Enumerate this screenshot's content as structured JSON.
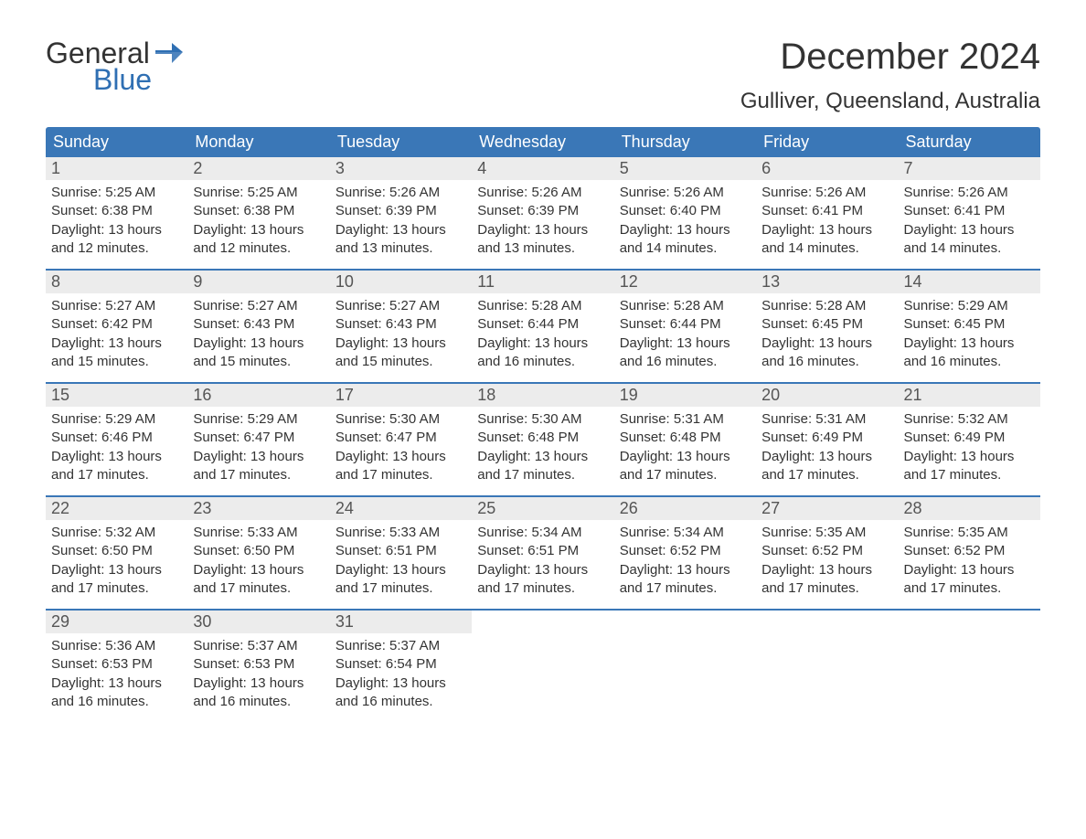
{
  "logo": {
    "general": "General",
    "blue": "Blue"
  },
  "title": "December 2024",
  "location": "Gulliver, Queensland, Australia",
  "colors": {
    "header_bg": "#3a77b7",
    "header_text": "#ffffff",
    "daynum_bg": "#ececec",
    "border": "#3a77b7",
    "body_text": "#333333",
    "logo_blue": "#2f6fb3"
  },
  "weekdays": [
    "Sunday",
    "Monday",
    "Tuesday",
    "Wednesday",
    "Thursday",
    "Friday",
    "Saturday"
  ],
  "weeks": [
    [
      {
        "n": "1",
        "sr": "Sunrise: 5:25 AM",
        "ss": "Sunset: 6:38 PM",
        "d1": "Daylight: 13 hours",
        "d2": "and 12 minutes."
      },
      {
        "n": "2",
        "sr": "Sunrise: 5:25 AM",
        "ss": "Sunset: 6:38 PM",
        "d1": "Daylight: 13 hours",
        "d2": "and 12 minutes."
      },
      {
        "n": "3",
        "sr": "Sunrise: 5:26 AM",
        "ss": "Sunset: 6:39 PM",
        "d1": "Daylight: 13 hours",
        "d2": "and 13 minutes."
      },
      {
        "n": "4",
        "sr": "Sunrise: 5:26 AM",
        "ss": "Sunset: 6:39 PM",
        "d1": "Daylight: 13 hours",
        "d2": "and 13 minutes."
      },
      {
        "n": "5",
        "sr": "Sunrise: 5:26 AM",
        "ss": "Sunset: 6:40 PM",
        "d1": "Daylight: 13 hours",
        "d2": "and 14 minutes."
      },
      {
        "n": "6",
        "sr": "Sunrise: 5:26 AM",
        "ss": "Sunset: 6:41 PM",
        "d1": "Daylight: 13 hours",
        "d2": "and 14 minutes."
      },
      {
        "n": "7",
        "sr": "Sunrise: 5:26 AM",
        "ss": "Sunset: 6:41 PM",
        "d1": "Daylight: 13 hours",
        "d2": "and 14 minutes."
      }
    ],
    [
      {
        "n": "8",
        "sr": "Sunrise: 5:27 AM",
        "ss": "Sunset: 6:42 PM",
        "d1": "Daylight: 13 hours",
        "d2": "and 15 minutes."
      },
      {
        "n": "9",
        "sr": "Sunrise: 5:27 AM",
        "ss": "Sunset: 6:43 PM",
        "d1": "Daylight: 13 hours",
        "d2": "and 15 minutes."
      },
      {
        "n": "10",
        "sr": "Sunrise: 5:27 AM",
        "ss": "Sunset: 6:43 PM",
        "d1": "Daylight: 13 hours",
        "d2": "and 15 minutes."
      },
      {
        "n": "11",
        "sr": "Sunrise: 5:28 AM",
        "ss": "Sunset: 6:44 PM",
        "d1": "Daylight: 13 hours",
        "d2": "and 16 minutes."
      },
      {
        "n": "12",
        "sr": "Sunrise: 5:28 AM",
        "ss": "Sunset: 6:44 PM",
        "d1": "Daylight: 13 hours",
        "d2": "and 16 minutes."
      },
      {
        "n": "13",
        "sr": "Sunrise: 5:28 AM",
        "ss": "Sunset: 6:45 PM",
        "d1": "Daylight: 13 hours",
        "d2": "and 16 minutes."
      },
      {
        "n": "14",
        "sr": "Sunrise: 5:29 AM",
        "ss": "Sunset: 6:45 PM",
        "d1": "Daylight: 13 hours",
        "d2": "and 16 minutes."
      }
    ],
    [
      {
        "n": "15",
        "sr": "Sunrise: 5:29 AM",
        "ss": "Sunset: 6:46 PM",
        "d1": "Daylight: 13 hours",
        "d2": "and 17 minutes."
      },
      {
        "n": "16",
        "sr": "Sunrise: 5:29 AM",
        "ss": "Sunset: 6:47 PM",
        "d1": "Daylight: 13 hours",
        "d2": "and 17 minutes."
      },
      {
        "n": "17",
        "sr": "Sunrise: 5:30 AM",
        "ss": "Sunset: 6:47 PM",
        "d1": "Daylight: 13 hours",
        "d2": "and 17 minutes."
      },
      {
        "n": "18",
        "sr": "Sunrise: 5:30 AM",
        "ss": "Sunset: 6:48 PM",
        "d1": "Daylight: 13 hours",
        "d2": "and 17 minutes."
      },
      {
        "n": "19",
        "sr": "Sunrise: 5:31 AM",
        "ss": "Sunset: 6:48 PM",
        "d1": "Daylight: 13 hours",
        "d2": "and 17 minutes."
      },
      {
        "n": "20",
        "sr": "Sunrise: 5:31 AM",
        "ss": "Sunset: 6:49 PM",
        "d1": "Daylight: 13 hours",
        "d2": "and 17 minutes."
      },
      {
        "n": "21",
        "sr": "Sunrise: 5:32 AM",
        "ss": "Sunset: 6:49 PM",
        "d1": "Daylight: 13 hours",
        "d2": "and 17 minutes."
      }
    ],
    [
      {
        "n": "22",
        "sr": "Sunrise: 5:32 AM",
        "ss": "Sunset: 6:50 PM",
        "d1": "Daylight: 13 hours",
        "d2": "and 17 minutes."
      },
      {
        "n": "23",
        "sr": "Sunrise: 5:33 AM",
        "ss": "Sunset: 6:50 PM",
        "d1": "Daylight: 13 hours",
        "d2": "and 17 minutes."
      },
      {
        "n": "24",
        "sr": "Sunrise: 5:33 AM",
        "ss": "Sunset: 6:51 PM",
        "d1": "Daylight: 13 hours",
        "d2": "and 17 minutes."
      },
      {
        "n": "25",
        "sr": "Sunrise: 5:34 AM",
        "ss": "Sunset: 6:51 PM",
        "d1": "Daylight: 13 hours",
        "d2": "and 17 minutes."
      },
      {
        "n": "26",
        "sr": "Sunrise: 5:34 AM",
        "ss": "Sunset: 6:52 PM",
        "d1": "Daylight: 13 hours",
        "d2": "and 17 minutes."
      },
      {
        "n": "27",
        "sr": "Sunrise: 5:35 AM",
        "ss": "Sunset: 6:52 PM",
        "d1": "Daylight: 13 hours",
        "d2": "and 17 minutes."
      },
      {
        "n": "28",
        "sr": "Sunrise: 5:35 AM",
        "ss": "Sunset: 6:52 PM",
        "d1": "Daylight: 13 hours",
        "d2": "and 17 minutes."
      }
    ],
    [
      {
        "n": "29",
        "sr": "Sunrise: 5:36 AM",
        "ss": "Sunset: 6:53 PM",
        "d1": "Daylight: 13 hours",
        "d2": "and 16 minutes."
      },
      {
        "n": "30",
        "sr": "Sunrise: 5:37 AM",
        "ss": "Sunset: 6:53 PM",
        "d1": "Daylight: 13 hours",
        "d2": "and 16 minutes."
      },
      {
        "n": "31",
        "sr": "Sunrise: 5:37 AM",
        "ss": "Sunset: 6:54 PM",
        "d1": "Daylight: 13 hours",
        "d2": "and 16 minutes."
      },
      null,
      null,
      null,
      null
    ]
  ]
}
